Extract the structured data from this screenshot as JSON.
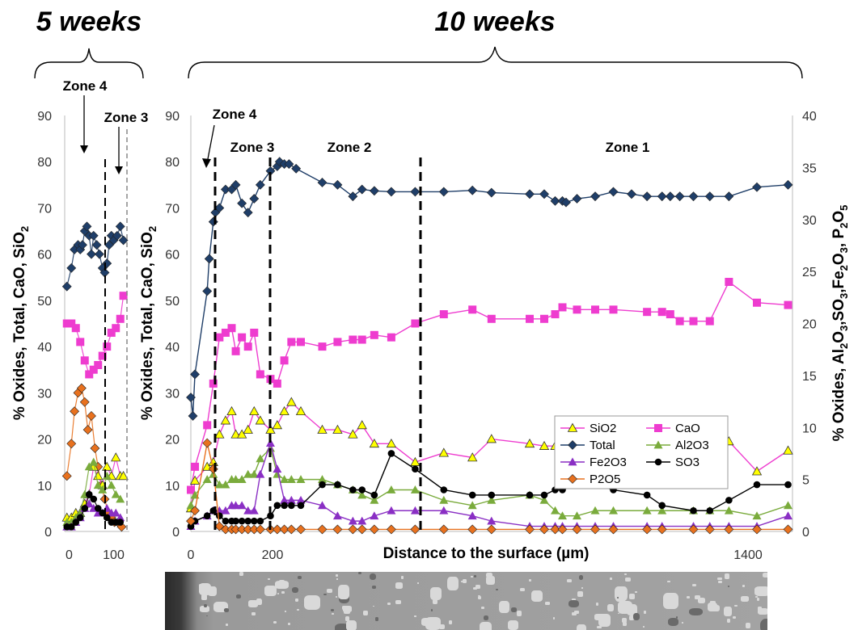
{
  "headers": {
    "left": "5 weeks",
    "right": "10 weeks"
  },
  "zones": {
    "small_zone4": "Zone 4",
    "small_zone3": "Zone 3",
    "main_zone4": "Zone 4",
    "main_zone3": "Zone 3",
    "main_zone2": "Zone 2",
    "main_zone1": "Zone 1"
  },
  "colors": {
    "Total": "#1f3e68",
    "SiO2": "#ee3ccf",
    "CaO": "#ee3ccf",
    "Al2O3": "#7aab3c",
    "Fe2O3": "#8a2fc4",
    "SO3": "#000000",
    "P2O5": "#e8711e",
    "SiO2_marker_fill": "#ffff00"
  },
  "chart_data": [
    {
      "id": "5 weeks",
      "type": "line",
      "ylabel": "% Oxides, Total, CaO, SiO2",
      "xlabel": "",
      "xticks": [
        0,
        100
      ],
      "yticks": [
        0,
        10,
        20,
        30,
        40,
        50,
        60,
        70,
        80,
        90
      ],
      "xlim": [
        -10,
        130
      ],
      "ylim": [
        0,
        90
      ],
      "grid": false,
      "series": [
        {
          "name": "Total",
          "marker": "diamond",
          "x": [
            -5,
            5,
            12,
            20,
            25,
            30,
            35,
            40,
            45,
            50,
            55,
            62,
            68,
            75,
            80,
            85,
            90,
            95,
            100,
            108,
            115,
            122
          ],
          "y": [
            53,
            57,
            61,
            62,
            61,
            62,
            65,
            66,
            64,
            60,
            64,
            62,
            60,
            57,
            56,
            58,
            62,
            64,
            63,
            64,
            66,
            63
          ]
        },
        {
          "name": "CaO",
          "marker": "square",
          "x": [
            -5,
            5,
            15,
            25,
            35,
            45,
            55,
            65,
            75,
            85,
            95,
            105,
            115,
            122
          ],
          "y": [
            45,
            45,
            44,
            41,
            37,
            34,
            35,
            36,
            38,
            40,
            43,
            44,
            46,
            51
          ]
        },
        {
          "name": "P2O5",
          "marker": "diamond",
          "x": [
            -5,
            5,
            12,
            20,
            28,
            35,
            42,
            50,
            58,
            65,
            72,
            80,
            88,
            95,
            102,
            110,
            118
          ],
          "y": [
            12,
            19,
            26,
            30,
            31,
            28,
            22,
            25,
            18,
            14,
            10,
            7,
            4,
            3,
            2,
            2,
            1
          ]
        },
        {
          "name": "SiO2",
          "marker": "triangle",
          "x": [
            -5,
            5,
            15,
            25,
            35,
            45,
            55,
            65,
            75,
            85,
            95,
            105,
            115,
            122
          ],
          "y": [
            3,
            3,
            4,
            4,
            6,
            8,
            14,
            12,
            10,
            14,
            12,
            16,
            12,
            12
          ]
        },
        {
          "name": "Al2O3",
          "marker": "triangle",
          "x": [
            -5,
            5,
            15,
            25,
            35,
            45,
            55,
            65,
            75,
            85,
            95,
            105,
            115
          ],
          "y": [
            2,
            2,
            3,
            4,
            8,
            14,
            15,
            10,
            9,
            12,
            10,
            8,
            7
          ]
        },
        {
          "name": "Fe2O3",
          "marker": "triangle",
          "x": [
            -5,
            5,
            15,
            25,
            35,
            45,
            55,
            65,
            75,
            85,
            95,
            105,
            115
          ],
          "y": [
            1,
            1,
            2,
            3,
            5,
            6,
            5,
            4,
            4,
            5,
            4,
            4,
            3
          ]
        },
        {
          "name": "SO3",
          "marker": "circle",
          "x": [
            -5,
            5,
            15,
            25,
            35,
            45,
            55,
            65,
            75,
            85,
            95,
            105,
            115
          ],
          "y": [
            1,
            1,
            2,
            3,
            5,
            8,
            7,
            5,
            4,
            3,
            2,
            2,
            2
          ]
        }
      ]
    },
    {
      "id": "10 weeks",
      "type": "line",
      "xlabel": "Distance to the surface (µm)",
      "ylabel": "% Oxides, Total, CaO, SiO2",
      "ylabel_right": "% Oxides, Al2O3,SO3,Fe2O3, P2O5",
      "xticks": [
        "0",
        "200",
        "1400"
      ],
      "yticks": [
        0,
        10,
        20,
        30,
        40,
        50,
        60,
        70,
        80,
        90
      ],
      "yticks_right": [
        0,
        5,
        10,
        15,
        20,
        25,
        30,
        35,
        40
      ],
      "ylim": [
        0,
        90
      ],
      "ylim_right": [
        0,
        40
      ],
      "grid": false,
      "legend": {
        "position": "center-right",
        "entries": [
          "SiO2",
          "CaO",
          "Total",
          "Al2O3",
          "Fe2O3",
          "SO3",
          "P2O5"
        ]
      },
      "series": [
        {
          "name": "Total",
          "axis": "left",
          "marker": "diamond",
          "x": [
            0,
            5,
            10,
            40,
            45,
            55,
            60,
            70,
            85,
            100,
            110,
            125,
            140,
            155,
            170,
            195,
            210,
            215,
            225,
            235,
            250,
            295,
            320,
            345,
            360,
            380,
            410,
            460,
            520,
            580,
            620,
            700,
            740,
            770,
            790,
            800,
            830,
            880,
            930,
            980,
            1030,
            1085,
            1115,
            1150,
            1200,
            1260,
            1330,
            1420,
            1490
          ],
          "y": [
            29,
            25,
            34,
            52,
            59,
            67,
            69,
            70,
            74,
            74,
            75,
            71,
            69,
            72,
            75,
            78,
            79,
            80,
            79.5,
            79.5,
            78.5,
            75.5,
            75,
            72.5,
            74,
            73.7,
            73.5,
            73.5,
            73.5,
            73.8,
            73.3,
            73,
            73,
            71.5,
            71.5,
            71.2,
            72,
            72.5,
            73.5,
            73,
            72.5,
            72.5,
            72.5,
            72.5,
            72.5,
            72.5,
            72.5,
            74.5,
            75
          ]
        },
        {
          "name": "CaO",
          "axis": "left",
          "marker": "square",
          "x": [
            0,
            10,
            40,
            55,
            70,
            85,
            100,
            110,
            125,
            140,
            155,
            170,
            195,
            210,
            225,
            240,
            260,
            295,
            320,
            345,
            360,
            380,
            410,
            460,
            520,
            580,
            620,
            700,
            740,
            770,
            790,
            830,
            880,
            930,
            1030,
            1085,
            1115,
            1150,
            1200,
            1260,
            1330,
            1420,
            1490
          ],
          "y": [
            9,
            14,
            23,
            32,
            42,
            43,
            44,
            39,
            42,
            40,
            43,
            34,
            33,
            32,
            37,
            41,
            41,
            40,
            41,
            41.5,
            41.5,
            42.5,
            42,
            45,
            47,
            48,
            46,
            46,
            46,
            47,
            48.5,
            48,
            48,
            48,
            47.5,
            47.5,
            47,
            45.5,
            45.5,
            45.5,
            54,
            49.5,
            49
          ]
        },
        {
          "name": "SiO2",
          "axis": "left",
          "marker": "triangle",
          "x": [
            0,
            10,
            40,
            55,
            70,
            85,
            100,
            110,
            125,
            140,
            155,
            170,
            195,
            210,
            225,
            240,
            260,
            295,
            320,
            345,
            360,
            380,
            410,
            460,
            520,
            580,
            620,
            700,
            740,
            770,
            790,
            830,
            880,
            930,
            1030,
            1085,
            1200,
            1260,
            1330,
            1420,
            1490
          ],
          "y": [
            5,
            11,
            14,
            15,
            21,
            24,
            26,
            21,
            21,
            22,
            26,
            24,
            22,
            23,
            26,
            28,
            26,
            22,
            22,
            21,
            23,
            19,
            19,
            15,
            17,
            16,
            20,
            19,
            18.5,
            18.5,
            17.5,
            17,
            16.5,
            16.5,
            17,
            18,
            19,
            19.5,
            19.5,
            13,
            17.5
          ]
        },
        {
          "name": "Al2O3",
          "axis": "right",
          "marker": "triangle",
          "x": [
            0,
            10,
            40,
            55,
            70,
            85,
            100,
            110,
            125,
            140,
            155,
            170,
            195,
            210,
            225,
            240,
            260,
            295,
            320,
            345,
            360,
            380,
            410,
            460,
            520,
            580,
            620,
            700,
            740,
            770,
            790,
            830,
            880,
            930,
            1030,
            1085,
            1200,
            1260,
            1330,
            1420,
            1490
          ],
          "y": [
            2.5,
            3.5,
            5,
            5.5,
            4.5,
            4.5,
            5,
            5,
            5,
            5.5,
            5.5,
            7,
            8,
            5.5,
            5,
            5,
            5,
            5,
            4.5,
            4,
            3.5,
            3,
            4,
            4,
            3,
            2.5,
            3,
            3.5,
            3,
            2,
            1.5,
            1.5,
            2,
            2,
            2,
            2,
            2,
            2,
            2,
            1.5,
            2.5
          ]
        },
        {
          "name": "Fe2O3",
          "axis": "right",
          "marker": "triangle",
          "x": [
            0,
            10,
            40,
            55,
            70,
            85,
            100,
            110,
            125,
            140,
            155,
            170,
            195,
            210,
            225,
            240,
            260,
            295,
            320,
            345,
            360,
            380,
            410,
            460,
            520,
            580,
            620,
            700,
            740,
            770,
            790,
            830,
            880,
            930,
            1030,
            1085,
            1200,
            1260,
            1330,
            1420,
            1490
          ],
          "y": [
            0.5,
            1,
            1.5,
            2,
            2,
            2,
            2.5,
            2.5,
            2.5,
            2,
            2,
            5.5,
            8.5,
            6,
            3,
            3,
            3,
            2.5,
            1.5,
            1,
            1,
            1.5,
            2,
            2,
            2,
            1.5,
            1,
            0.5,
            0.5,
            0.5,
            0.5,
            0.5,
            0.5,
            0.5,
            0.5,
            0.5,
            0.5,
            0.5,
            0.5,
            0.5,
            1.5
          ]
        },
        {
          "name": "SO3",
          "axis": "right",
          "marker": "circle",
          "x": [
            0,
            10,
            40,
            55,
            70,
            85,
            100,
            110,
            125,
            140,
            155,
            170,
            195,
            210,
            225,
            240,
            260,
            295,
            320,
            345,
            360,
            380,
            410,
            460,
            520,
            580,
            620,
            700,
            740,
            770,
            790,
            830,
            880,
            930,
            1030,
            1085,
            1200,
            1260,
            1330,
            1420,
            1490
          ],
          "y": [
            0.5,
            1,
            1.5,
            2,
            1.5,
            1,
            1,
            1,
            1,
            1,
            1,
            1,
            1.5,
            2.5,
            2.5,
            2.5,
            2.5,
            4.5,
            4.5,
            4,
            4,
            3.5,
            7.5,
            6,
            4,
            3.5,
            3.5,
            3.5,
            3.5,
            4,
            4,
            4.5,
            4.5,
            4,
            3.5,
            2.5,
            2,
            2,
            3,
            4.5,
            4.5
          ]
        },
        {
          "name": "P2O5",
          "axis": "right",
          "marker": "diamond",
          "x": [
            0,
            10,
            40,
            55,
            70,
            85,
            100,
            110,
            125,
            140,
            155,
            170,
            195,
            210,
            225,
            240,
            260,
            295,
            320,
            345,
            360,
            380,
            410,
            460,
            520,
            580,
            620,
            700,
            740,
            770,
            790,
            830,
            880,
            930,
            1030,
            1085,
            1200,
            1260,
            1330,
            1420,
            1490
          ],
          "y": [
            1,
            2,
            8.5,
            6,
            0.5,
            0.2,
            0.2,
            0.2,
            0.2,
            0.2,
            0.2,
            0.2,
            0.2,
            0.2,
            0.2,
            0.2,
            0.2,
            0.2,
            0.2,
            0.2,
            0.2,
            0.2,
            0.2,
            0.2,
            0.2,
            0.2,
            0.2,
            0.2,
            0.2,
            0.2,
            0.2,
            0.2,
            0.2,
            0.2,
            0.2,
            0.2,
            0.2,
            0.2,
            0.2,
            0.2,
            0.2
          ]
        }
      ]
    }
  ]
}
